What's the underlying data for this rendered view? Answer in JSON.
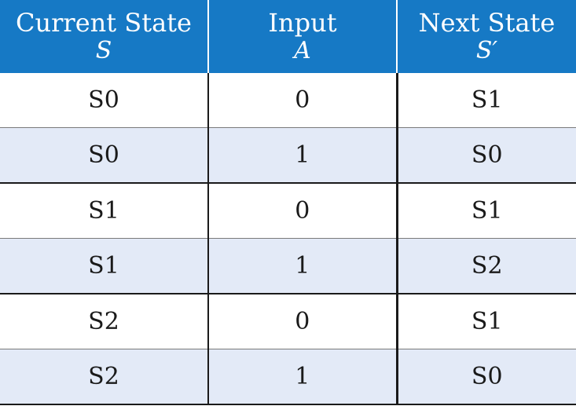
{
  "headers": [
    {
      "title": "Current State",
      "symbol": "S"
    },
    {
      "title": "Input",
      "symbol": "A"
    },
    {
      "title": "Next State",
      "symbol": "S′"
    }
  ],
  "rows": [
    {
      "current": "S0",
      "input": "0",
      "next": "S1"
    },
    {
      "current": "S0",
      "input": "1",
      "next": "S0"
    },
    {
      "current": "S1",
      "input": "0",
      "next": "S1"
    },
    {
      "current": "S1",
      "input": "1",
      "next": "S2"
    },
    {
      "current": "S2",
      "input": "0",
      "next": "S1"
    },
    {
      "current": "S2",
      "input": "1",
      "next": "S0"
    }
  ],
  "colors": {
    "header_bg": "#1679c5",
    "header_text": "#ffffff",
    "alt_row_bg": "#e3eaf7",
    "rule": "#1a1a1a"
  }
}
